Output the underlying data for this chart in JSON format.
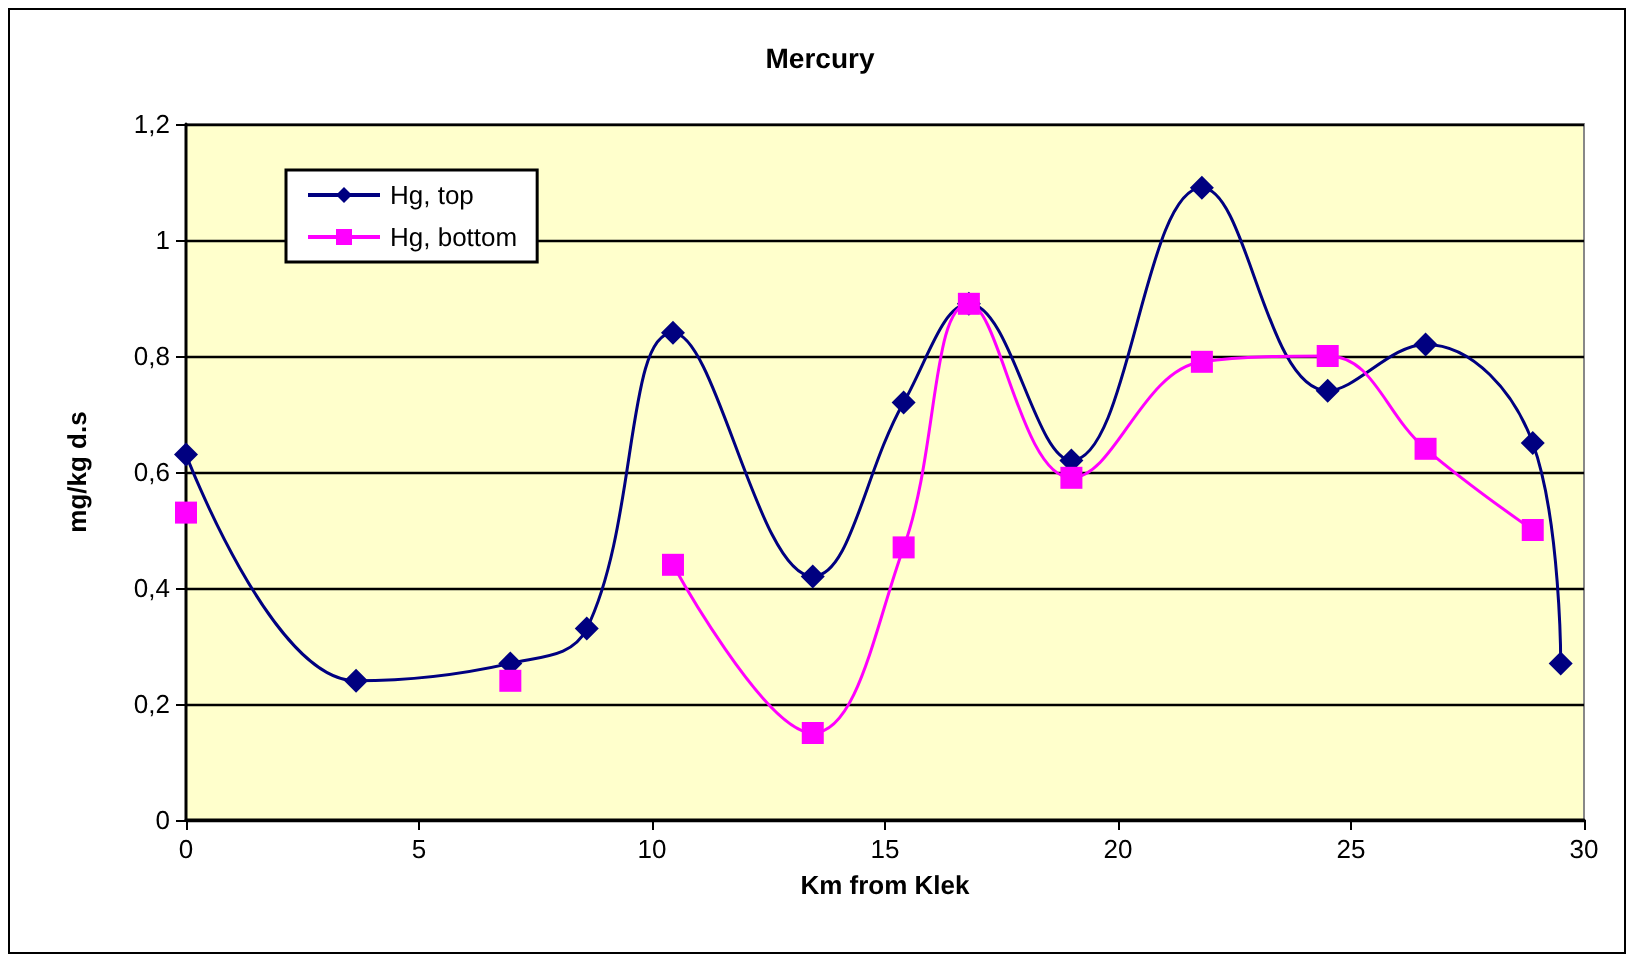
{
  "chart_data": {
    "type": "line",
    "title": "Mercury",
    "xlabel": "Km from Klek",
    "ylabel": "mg/kg d.s",
    "x": [
      0,
      3.65,
      6.96,
      8.6,
      10.45,
      13.45,
      15.4,
      16.8,
      19.0,
      21.8,
      24.5,
      26.6,
      28.9,
      29.5
    ],
    "series": [
      {
        "name": "Hg, top",
        "color": "#000080",
        "marker": "diamond",
        "values": [
          0.63,
          0.24,
          0.27,
          0.33,
          0.84,
          0.42,
          0.72,
          0.89,
          0.62,
          1.09,
          0.74,
          0.82,
          0.65,
          0.27
        ]
      },
      {
        "name": "Hg, bottom",
        "color": "#ff00ff",
        "marker": "square",
        "values": [
          0.53,
          null,
          0.24,
          null,
          0.44,
          0.15,
          0.47,
          0.89,
          0.59,
          0.79,
          0.8,
          0.64,
          0.5,
          null
        ]
      }
    ],
    "xlim": [
      0,
      30
    ],
    "xticks": [
      0,
      5,
      10,
      15,
      20,
      25,
      30
    ],
    "ylim": [
      0,
      1.2
    ],
    "yticks": [
      0,
      {
        "value": 0.2,
        "label": "0,2"
      },
      {
        "value": 0.4,
        "label": "0,4"
      },
      {
        "value": 0.6,
        "label": "0,6"
      },
      {
        "value": 0.8,
        "label": "0,8"
      },
      1,
      {
        "value": 1.2,
        "label": "1,2"
      }
    ],
    "grid": "y",
    "legend": "top left",
    "line_style": "solid"
  }
}
